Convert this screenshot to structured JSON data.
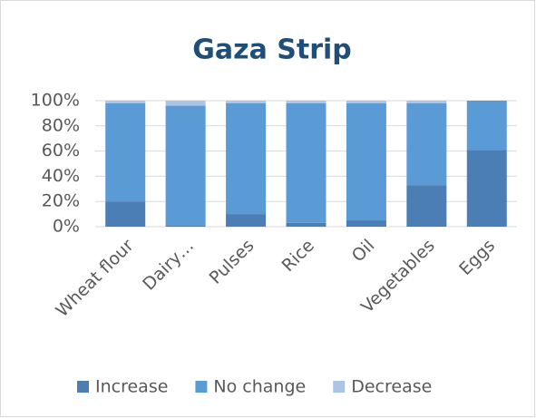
{
  "chart_data": {
    "type": "stacked_bar",
    "title": "Gaza Strip",
    "categories": [
      "Wheat flour",
      "Dairy…",
      "Pulses",
      "Rice",
      "Oil",
      "Vegetables",
      "Eggs"
    ],
    "series": [
      {
        "name": "Increase",
        "color": "#4a7eb4",
        "values": [
          20,
          1,
          10,
          3,
          5,
          33,
          61
        ]
      },
      {
        "name": "No change",
        "color": "#5b9bd5",
        "values": [
          78,
          95,
          88,
          95,
          93,
          65,
          39
        ]
      },
      {
        "name": "Decrease",
        "color": "#aac5e6",
        "values": [
          2,
          4,
          2,
          2,
          2,
          2,
          0
        ]
      }
    ],
    "ylim": [
      0,
      100
    ],
    "yticks": [
      {
        "value": 0,
        "label": "0%"
      },
      {
        "value": 20,
        "label": "20%"
      },
      {
        "value": 40,
        "label": "40%"
      },
      {
        "value": 60,
        "label": "60%"
      },
      {
        "value": 80,
        "label": "80%"
      },
      {
        "value": 100,
        "label": "100%"
      }
    ],
    "grid": true,
    "legend": "bottom"
  }
}
